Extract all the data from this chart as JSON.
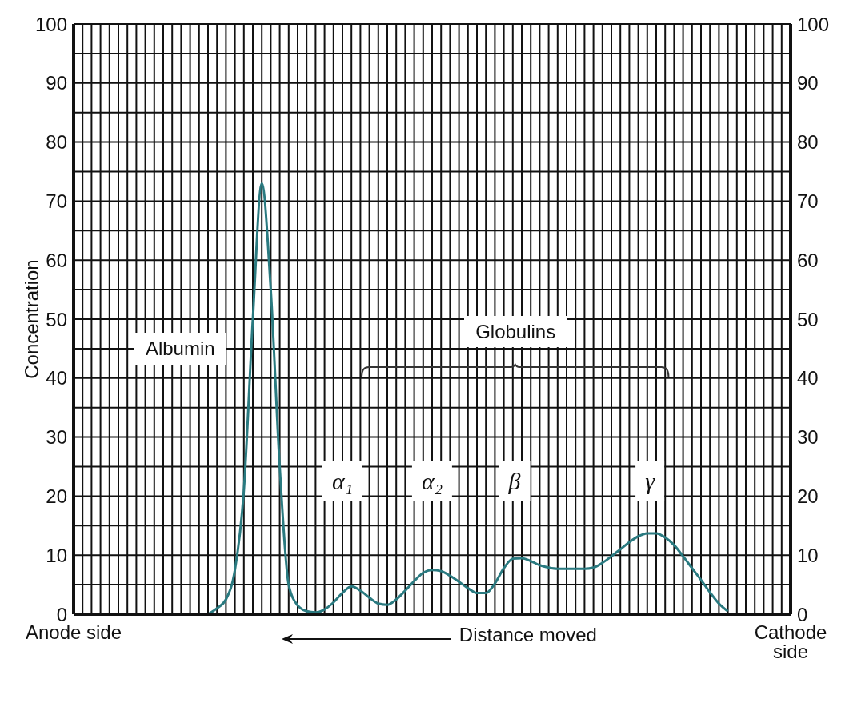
{
  "chart_data": {
    "type": "line",
    "ylabel": "Concentration",
    "xlabel": "Distance moved",
    "categories": [
      "Anode side",
      null,
      null,
      null,
      null,
      null,
      null,
      null,
      null,
      null,
      null,
      null,
      null,
      null,
      null,
      null,
      null,
      null,
      null,
      null,
      null,
      null,
      null,
      null,
      null,
      null,
      null,
      null,
      null,
      null,
      null,
      null,
      null,
      null,
      null,
      null,
      null,
      null,
      null,
      null,
      null,
      null,
      null,
      null,
      null,
      null,
      null,
      null,
      null,
      null,
      null,
      null,
      null,
      null,
      null,
      null,
      null,
      null,
      null,
      null,
      null,
      null,
      null,
      null,
      null,
      null,
      null,
      null,
      null,
      null,
      null,
      null,
      null,
      null,
      null,
      null,
      null,
      null,
      null,
      null,
      "Cathode side"
    ],
    "series": [
      {
        "color": "#2a7a80",
        "values": [
          null,
          null,
          null,
          null,
          null,
          null,
          null,
          null,
          null,
          null,
          null,
          null,
          null,
          null,
          null,
          0,
          1,
          2.5,
          7.5,
          21,
          50,
          73,
          55,
          25,
          5,
          1.5,
          0.5,
          0.3,
          0.8,
          2,
          3.6,
          4.7,
          4,
          2.8,
          1.8,
          1.6,
          2.5,
          4,
          5.6,
          7,
          7.5,
          7.3,
          6.5,
          5.5,
          4.4,
          3.6,
          3.6,
          5.2,
          7.8,
          9.4,
          9.5,
          9,
          8.3,
          7.9,
          7.7,
          7.7,
          7.7,
          7.7,
          7.9,
          8.7,
          9.8,
          11,
          12.2,
          13.2,
          13.7,
          13.7,
          13,
          11.7,
          9.8,
          7.8,
          5.8,
          3.7,
          1.8,
          0.5,
          null,
          null,
          null,
          null,
          null,
          null,
          null
        ]
      }
    ],
    "ylim": [
      0,
      100
    ],
    "yticks": [
      0,
      {
        "value": 5,
        "label": null
      },
      10,
      {
        "value": 15,
        "label": null
      },
      20,
      {
        "value": 25,
        "label": null
      },
      30,
      {
        "value": 35,
        "label": null
      },
      40,
      {
        "value": 45,
        "label": null
      },
      50,
      {
        "value": 55,
        "label": null
      },
      60,
      {
        "value": 65,
        "label": null
      },
      70,
      {
        "value": 75,
        "label": null
      },
      80,
      {
        "value": 85,
        "label": null
      },
      90,
      {
        "value": 95,
        "label": null
      },
      100
    ],
    "y2lim": [
      0,
      100
    ],
    "y2ticks": [
      0,
      10,
      20,
      30,
      40,
      50,
      60,
      70,
      80,
      90,
      100
    ],
    "grid": true,
    "marker": "none",
    "line_style": "solid",
    "annotations": [
      "Albumin",
      "Globulins",
      "α₁",
      "α₂",
      "β",
      "γ"
    ]
  }
}
